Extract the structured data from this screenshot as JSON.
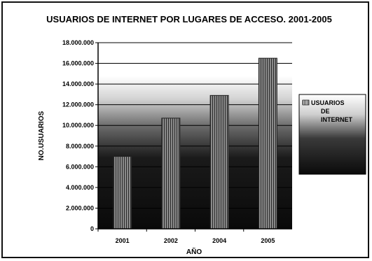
{
  "chart_data": {
    "type": "bar",
    "title": "USUARIOS DE INTERNET POR LUGARES DE ACCESO. 2001-2005",
    "xlabel": "AÑO",
    "ylabel": "NO.USUARIOS",
    "categories": [
      "2001",
      "2002",
      "2004",
      "2005"
    ],
    "series": [
      {
        "name": "USUARIOS DE INTERNET",
        "values": [
          7000000,
          10700000,
          12900000,
          16500000
        ]
      }
    ],
    "ylim": [
      0,
      18000000
    ],
    "yticks": [
      {
        "value": 0,
        "label": "0"
      },
      {
        "value": 2000000,
        "label": "2.000.000"
      },
      {
        "value": 4000000,
        "label": "4.000.000"
      },
      {
        "value": 6000000,
        "label": "6.000.000"
      },
      {
        "value": 8000000,
        "label": "8.000.000"
      },
      {
        "value": 10000000,
        "label": "10.000.000"
      },
      {
        "value": 12000000,
        "label": "12.000.000"
      },
      {
        "value": 14000000,
        "label": "14.000.000"
      },
      {
        "value": 16000000,
        "label": "16.000.000"
      },
      {
        "value": 18000000,
        "label": "18.000.000"
      }
    ],
    "grid": true,
    "legend_position": "right",
    "colors": {
      "bar": "#6e6e6e",
      "plot_dark": "#111111",
      "plot_light": "#d9d9d9",
      "text": "#000000"
    }
  }
}
